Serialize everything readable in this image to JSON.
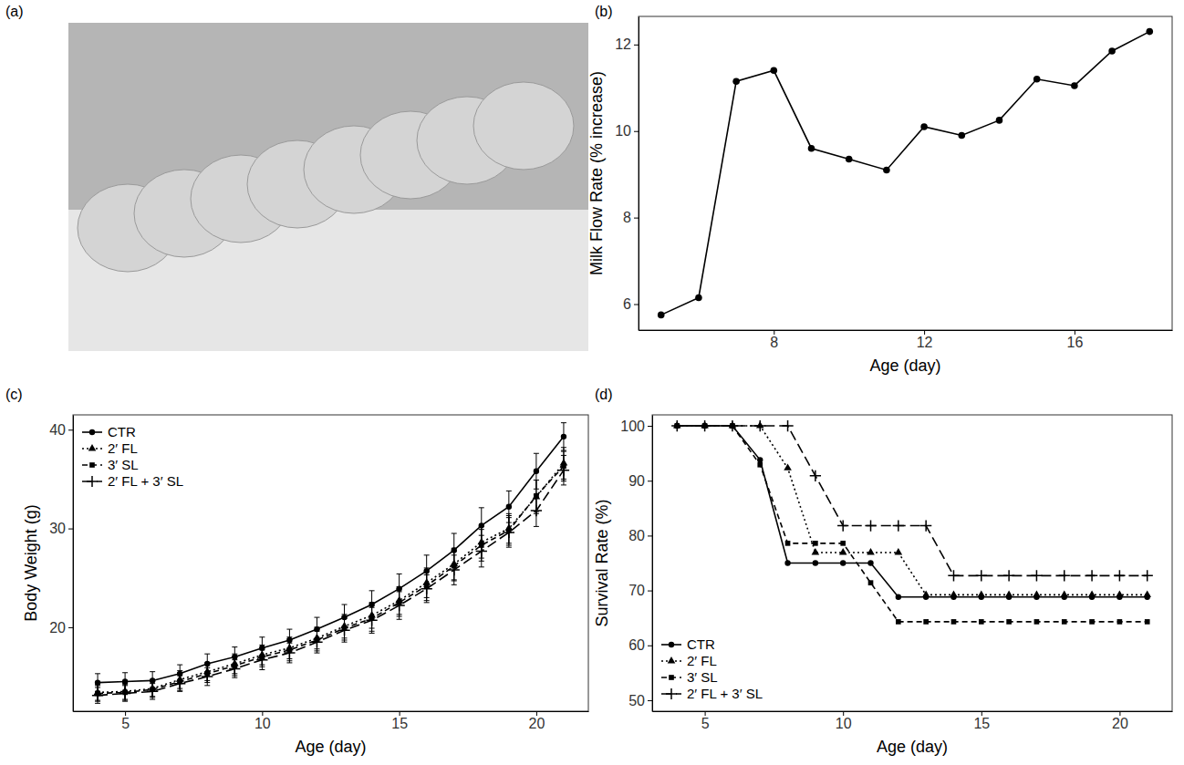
{
  "panel_labels": [
    "(a)",
    "(b)",
    "(c)",
    "(d)"
  ],
  "chart_data": [
    {
      "type": "line",
      "x_label": "Age (day)",
      "y_label": "Milk Flow Rate (% increase)",
      "x": [
        5,
        6,
        7,
        8,
        9,
        10,
        11,
        12,
        13,
        14,
        15,
        16,
        17,
        18
      ],
      "values": [
        5.75,
        6.15,
        11.15,
        11.4,
        9.6,
        9.35,
        9.1,
        10.1,
        9.9,
        10.25,
        11.2,
        11.05,
        11.85,
        12.3
      ],
      "marker": "circle",
      "line_style": "solid",
      "color": "#000000",
      "xlim": [
        4.4,
        18.6
      ],
      "xticks": [
        8,
        12,
        16
      ],
      "ylim": [
        5.4,
        12.65
      ],
      "yticks": [
        6,
        8,
        10,
        12
      ],
      "grid": false
    },
    {
      "type": "line",
      "x_label": "Age (day)",
      "y_label": "Body Weight (g)",
      "x": [
        4,
        5,
        6,
        7,
        8,
        9,
        10,
        11,
        12,
        13,
        14,
        15,
        16,
        17,
        18,
        19,
        20,
        21
      ],
      "series": [
        {
          "name": "CTR",
          "color": "#000000",
          "marker": "circle",
          "line_style": "solid",
          "values": [
            14.4,
            14.5,
            14.6,
            15.3,
            16.3,
            17.0,
            17.9,
            18.7,
            19.8,
            21.0,
            22.3,
            23.9,
            25.7,
            27.8,
            30.3,
            32.2,
            35.8,
            39.3
          ],
          "errors": [
            0.9,
            0.9,
            0.9,
            0.9,
            1.0,
            1.0,
            1.1,
            1.1,
            1.2,
            1.3,
            1.4,
            1.5,
            1.6,
            1.7,
            1.8,
            1.6,
            1.8,
            1.4
          ]
        },
        {
          "name": "2′ FL",
          "color": "#000000",
          "marker": "triangle",
          "line_style": "dotted",
          "values": [
            13.4,
            13.5,
            13.8,
            14.7,
            15.5,
            16.3,
            17.2,
            17.9,
            18.9,
            20.1,
            21.2,
            22.7,
            24.5,
            26.4,
            28.6,
            30.0,
            33.2,
            36.6
          ],
          "errors": [
            0.8,
            0.8,
            0.8,
            0.9,
            0.9,
            1.0,
            1.0,
            1.1,
            1.1,
            1.2,
            1.3,
            1.4,
            1.5,
            1.6,
            1.6,
            1.5,
            1.7,
            1.6
          ]
        },
        {
          "name": "3′ SL",
          "color": "#000000",
          "marker": "square",
          "line_style": "dashed",
          "values": [
            13.3,
            13.4,
            13.7,
            14.5,
            15.3,
            16.1,
            17.0,
            17.7,
            18.7,
            19.9,
            20.9,
            22.5,
            24.2,
            26.2,
            28.3,
            29.8,
            33.3,
            36.3
          ],
          "errors": [
            0.8,
            0.8,
            0.8,
            0.9,
            0.9,
            1.0,
            1.0,
            1.1,
            1.1,
            1.2,
            1.3,
            1.4,
            1.5,
            1.5,
            1.6,
            1.5,
            1.6,
            1.5
          ]
        },
        {
          "name": "2′ FL + 3′ SL",
          "color": "#000000",
          "marker": "plus",
          "line_style": "longdash",
          "values": [
            13.1,
            13.3,
            13.5,
            14.3,
            15.0,
            15.8,
            16.7,
            17.4,
            18.5,
            19.7,
            20.7,
            22.2,
            23.9,
            25.8,
            27.7,
            29.6,
            31.8,
            35.9
          ],
          "errors": [
            0.8,
            0.8,
            0.8,
            0.8,
            0.9,
            0.9,
            1.0,
            1.0,
            1.1,
            1.2,
            1.3,
            1.4,
            1.4,
            1.5,
            1.6,
            1.5,
            1.6,
            1.5
          ]
        }
      ],
      "xlim": [
        3.1,
        21.9
      ],
      "xticks": [
        5,
        10,
        15,
        20
      ],
      "ylim": [
        11.5,
        41.5
      ],
      "yticks": [
        20,
        30,
        40
      ],
      "grid": false,
      "legend": "upper left"
    },
    {
      "type": "line",
      "x_label": "Age (day)",
      "y_label": "Survival Rate (%)",
      "x": [
        4,
        5,
        6,
        7,
        8,
        9,
        10,
        11,
        12,
        13,
        14,
        15,
        16,
        17,
        18,
        19,
        20,
        21
      ],
      "series": [
        {
          "name": "CTR",
          "color": "#000000",
          "marker": "circle",
          "line_style": "solid",
          "values": [
            100,
            100,
            100,
            93.8,
            75,
            75,
            75,
            75,
            68.8,
            68.8,
            68.8,
            68.8,
            68.8,
            68.8,
            68.8,
            68.8,
            68.8,
            68.8
          ]
        },
        {
          "name": "2′ FL",
          "color": "#000000",
          "marker": "triangle",
          "line_style": "dotted",
          "values": [
            100,
            100,
            100,
            100,
            92.3,
            76.9,
            76.9,
            76.9,
            76.9,
            69.2,
            69.2,
            69.2,
            69.2,
            69.2,
            69.2,
            69.2,
            69.2,
            69.2
          ]
        },
        {
          "name": "3′ SL",
          "color": "#000000",
          "marker": "square",
          "line_style": "dashed",
          "values": [
            100,
            100,
            100,
            92.9,
            78.6,
            78.6,
            78.6,
            71.4,
            64.3,
            64.3,
            64.3,
            64.3,
            64.3,
            64.3,
            64.3,
            64.3,
            64.3,
            64.3
          ]
        },
        {
          "name": "2′ FL + 3′ SL",
          "color": "#000000",
          "marker": "plus",
          "line_style": "longdash",
          "values": [
            100,
            100,
            100,
            100,
            100,
            90.9,
            81.8,
            81.8,
            81.8,
            81.8,
            72.7,
            72.7,
            72.7,
            72.7,
            72.7,
            72.7,
            72.7,
            72.7
          ]
        }
      ],
      "xlim": [
        3.1,
        21.9
      ],
      "xticks": [
        5,
        10,
        15,
        20
      ],
      "ylim": [
        48,
        102
      ],
      "yticks": [
        50,
        60,
        70,
        80,
        90,
        100
      ],
      "grid": false,
      "legend": "lower left"
    }
  ]
}
